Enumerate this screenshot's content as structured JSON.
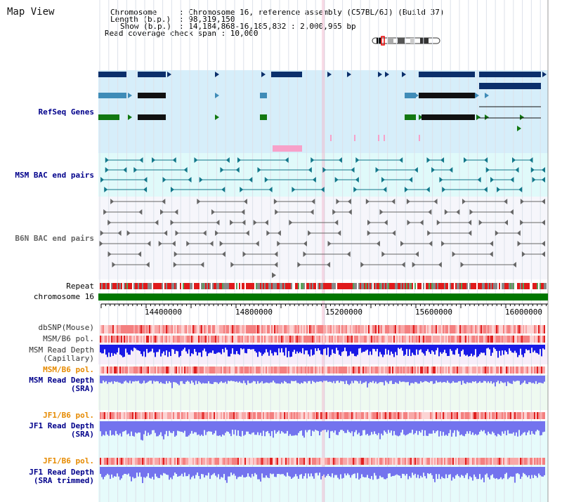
{
  "title": "Map View",
  "info": {
    "chromosome_key": "Chromosome",
    "chromosome_val": ": Chromosome 16, reference assembly (C57BL/6J) (Build 37)",
    "length_key": "Length (b.p.)",
    "length_val": ": 98,319,150",
    "show_key": "Show (b.p.)",
    "show_val": ": 14,184,868-16,185,832 : 2,000,965 bp",
    "coverage": "Read coverage check span : 10,000"
  },
  "tracks": {
    "refseq": "RefSeq Genes",
    "msm_bac": "MSM BAC end pairs",
    "b6n_bac": "B6N BAC end pairs",
    "repeat": "Repeat",
    "chromosome": "chromosome 16",
    "dbsnp": "dbSNP(Mouse)",
    "msm_b6_pol_1": "MSM/B6 pol.",
    "msm_read_depth_cap_1": "MSM Read Depth",
    "msm_read_depth_cap_2": "(Capillary)",
    "msm_b6_pol_2": "MSM/B6 pol.",
    "msm_read_depth_sra_1": "MSM Read Depth",
    "msm_read_depth_sra_2": "(SRA)",
    "jf1_b6_pol_1": "JF1/B6 pol.",
    "jf1_read_depth_sra_1": "JF1 Read Depth",
    "jf1_read_depth_sra_2": "(SRA)",
    "jf1_b6_pol_2": "JF1/B6 pol.",
    "jf1_read_depth_trim_1": "JF1 Read Depth",
    "jf1_read_depth_trim_2": "(SRA trimmed)"
  },
  "axis_ticks": [
    "14400000",
    "14800000",
    "15200000",
    "15600000",
    "16000000"
  ],
  "colors": {
    "blue_label": "#00008b",
    "orange_label": "#e68a00",
    "refseq_bg": "#d6eefa",
    "msm_bg": "#e0fafa",
    "b6n_bg": "#f6f6fb",
    "depth_cap_bg": "#f7eef9",
    "sra_bg": "#eefaf0",
    "jf1_bg": "#e6fbfb",
    "chrom_green": "#007700",
    "depth_blue": "#1a1ae6",
    "depth_lavender": "#7373ee"
  }
}
